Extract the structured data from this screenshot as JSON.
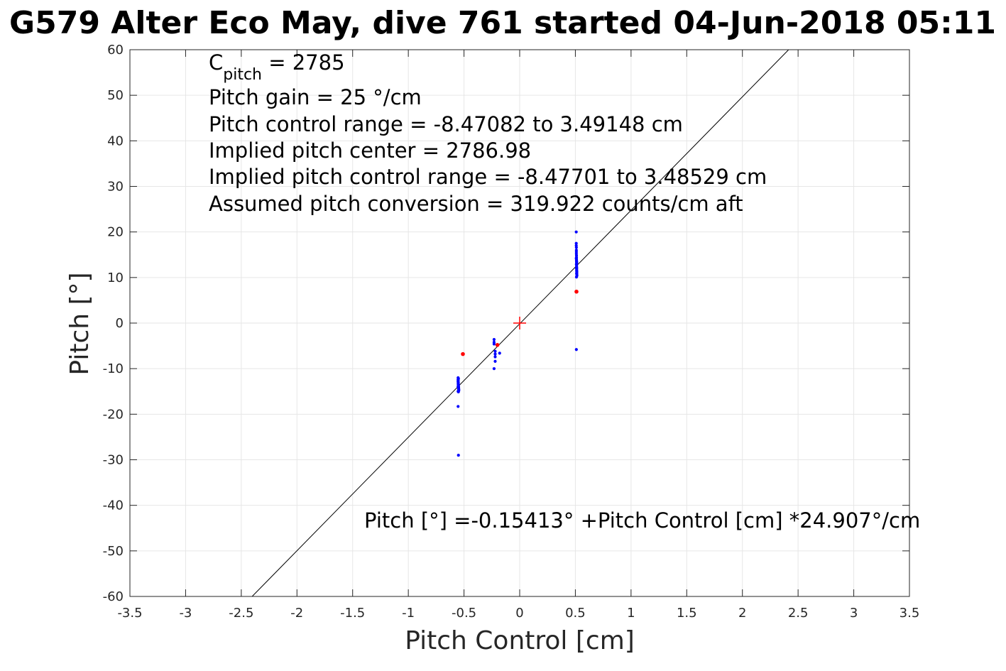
{
  "chart_data": {
    "type": "scatter",
    "title": "G579 Alter Eco May, dive 761 started 04-Jun-2018 05:11",
    "xlabel": "Pitch Control [cm]",
    "ylabel": "Pitch [°]",
    "xlim": [
      -3.5,
      3.5
    ],
    "ylim": [
      -60,
      60
    ],
    "x_ticks": [
      -3.5,
      -3,
      -2.5,
      -2,
      -1.5,
      -1,
      -0.5,
      0,
      0.5,
      1,
      1.5,
      2,
      2.5,
      3,
      3.5
    ],
    "x_tick_labels": [
      "-3.5",
      "-3",
      "-2.5",
      "-2",
      "-1.5",
      "-1",
      "-0.5",
      "0",
      "0.5",
      "1",
      "1.5",
      "2",
      "2.5",
      "3",
      "3.5"
    ],
    "y_ticks": [
      60,
      50,
      40,
      30,
      20,
      10,
      0,
      -10,
      -20,
      -30,
      -40,
      -50,
      -60
    ],
    "y_tick_labels": [
      "60",
      "50",
      "40",
      "30",
      "20",
      "10",
      "0",
      "-10",
      "-20",
      "-30",
      "-40",
      "-50",
      "-60"
    ],
    "grid": true,
    "colors": {
      "data_points": "#0000ff",
      "outlier_points": "#ff0000",
      "fit_line": "#000000",
      "center_marker": "#ff0000",
      "grid": "#e6e6e6",
      "axes": "#262626"
    },
    "fit_line": {
      "intercept": -0.15413,
      "slope": 24.907
    },
    "center_marker": {
      "x": 0,
      "y": 0
    },
    "series": [
      {
        "x": [
          -0.553,
          -0.553,
          -0.553,
          -0.552,
          -0.552,
          -0.552,
          -0.551,
          -0.551,
          -0.551,
          -0.55,
          -0.55,
          -0.55,
          -0.549,
          -0.549,
          -0.548,
          -0.548,
          -0.547,
          -0.547,
          -0.553,
          -0.55,
          -0.551,
          -0.552,
          -0.549,
          -0.548,
          -0.552,
          -0.551,
          -0.55,
          -0.553,
          -0.553,
          -0.55
        ],
        "y": [
          -12.0,
          -12.4,
          -12.8,
          -13.0,
          -13.2,
          -13.4,
          -13.5,
          -13.6,
          -13.7,
          -13.8,
          -13.9,
          -14.0,
          -14.1,
          -14.2,
          -14.3,
          -14.4,
          -14.6,
          -14.8,
          -15.0,
          -15.1,
          -13.3,
          -12.6,
          -14.5,
          -14.7,
          -13.9,
          -13.1,
          -12.2,
          -14.0,
          -18.3,
          -29.0
        ]
      },
      {
        "x": [
          -0.23,
          -0.23,
          -0.23,
          -0.22,
          -0.22,
          -0.22,
          -0.22,
          -0.23,
          -0.18
        ],
        "y": [
          -3.6,
          -4.2,
          -4.6,
          -6.2,
          -6.8,
          -7.4,
          -8.4,
          -10.0,
          -6.6
        ]
      },
      {
        "x": [
          0.508,
          0.508,
          0.508,
          0.509,
          0.509,
          0.509,
          0.51,
          0.51,
          0.51,
          0.51,
          0.511,
          0.511,
          0.511,
          0.511,
          0.512,
          0.512,
          0.512,
          0.513,
          0.513,
          0.513,
          0.514,
          0.51,
          0.509,
          0.511,
          0.512,
          0.508,
          0.51,
          0.511,
          0.509,
          0.512,
          0.509
        ],
        "y": [
          20.0,
          17.5,
          17.0,
          16.6,
          16.0,
          15.2,
          14.8,
          14.4,
          14.0,
          13.7,
          13.4,
          13.1,
          12.8,
          12.5,
          12.2,
          11.9,
          11.6,
          11.3,
          11.0,
          10.7,
          10.4,
          10.1,
          12.9,
          13.6,
          11.4,
          14.2,
          12.0,
          10.9,
          15.6,
          13.3,
          -5.8
        ]
      },
      {
        "x": [
          -0.51,
          -0.2,
          0.51
        ],
        "y": [
          -6.8,
          -4.8,
          6.9
        ],
        "outlier": true
      }
    ],
    "annotations": {
      "c_pitch_main": "C",
      "c_pitch_sub": "pitch",
      "c_pitch_value": " = 2785",
      "line2": "Pitch gain = 25 °/cm",
      "line3": "Pitch control range = -8.47082 to 3.49148 cm",
      "line4": "Implied pitch center = 2786.98",
      "line5": "Implied pitch control range = -8.47701 to 3.48529 cm",
      "line6": "Assumed pitch conversion = 319.922 counts/cm aft",
      "fit_equation": "Pitch [°] =-0.15413° +Pitch Control [cm] *24.907°/cm"
    }
  }
}
